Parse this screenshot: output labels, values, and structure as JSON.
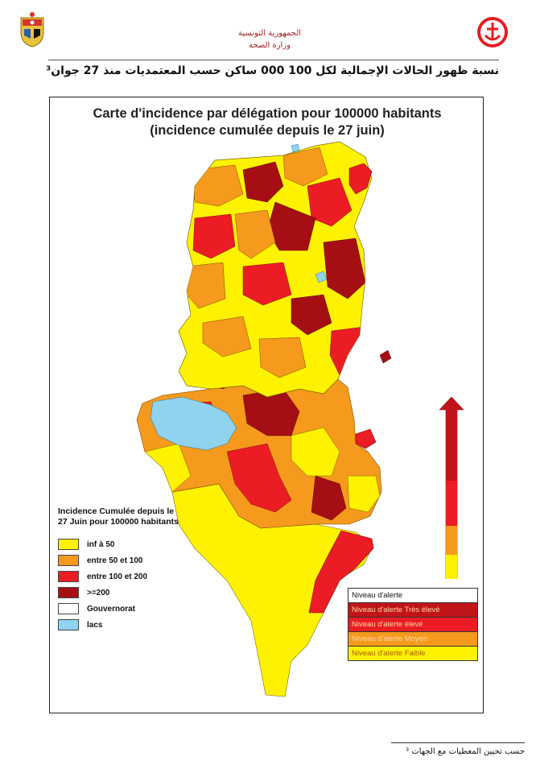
{
  "header": {
    "country": "الجمهورية التونسية",
    "ministry": "وزارة الصحة",
    "doc_title": "نسبة ظهور الحالات الإجمالية لكل 100 000 ساكن حسب المعتمديات منذ 27 جوان³"
  },
  "map": {
    "title_line1": "Carte d'incidence par délégation pour 100000 habitants",
    "title_line2": "(incidence cumulée depuis le 27 juin)"
  },
  "legend": {
    "title": "Incidence Cumulée depuis le 27 Juin pour 100000 habitants",
    "items": [
      {
        "label": "inf à 50",
        "color": "#fff200"
      },
      {
        "label": "entre 50 et 100",
        "color": "#f59a1c"
      },
      {
        "label": "entre 100 et 200",
        "color": "#ec1c24"
      },
      {
        "label": ">=200",
        "color": "#a50f14"
      },
      {
        "label": "Gouvernorat",
        "color": "#ffffff"
      },
      {
        "label": "lacs",
        "color": "#8fd3ef"
      }
    ]
  },
  "alert_scale": {
    "colors": [
      "#c0141a",
      "#ec1c24",
      "#f59a1c",
      "#fff200"
    ]
  },
  "alert_table": {
    "header": "Niveau d'alerte",
    "rows": [
      {
        "label": "Niveau d'alerte Très élevé",
        "color": "#c0141a"
      },
      {
        "label": "Niveau d'alerte élevé",
        "color": "#ec1c24"
      },
      {
        "label": "Niveau d'alerte Moyen",
        "color": "#f59a1c"
      },
      {
        "label": "Niveau d'alerte Faible",
        "color": "#fff200"
      }
    ]
  },
  "footnote": "حسب تحيين المعطيات مع الجهات ³"
}
